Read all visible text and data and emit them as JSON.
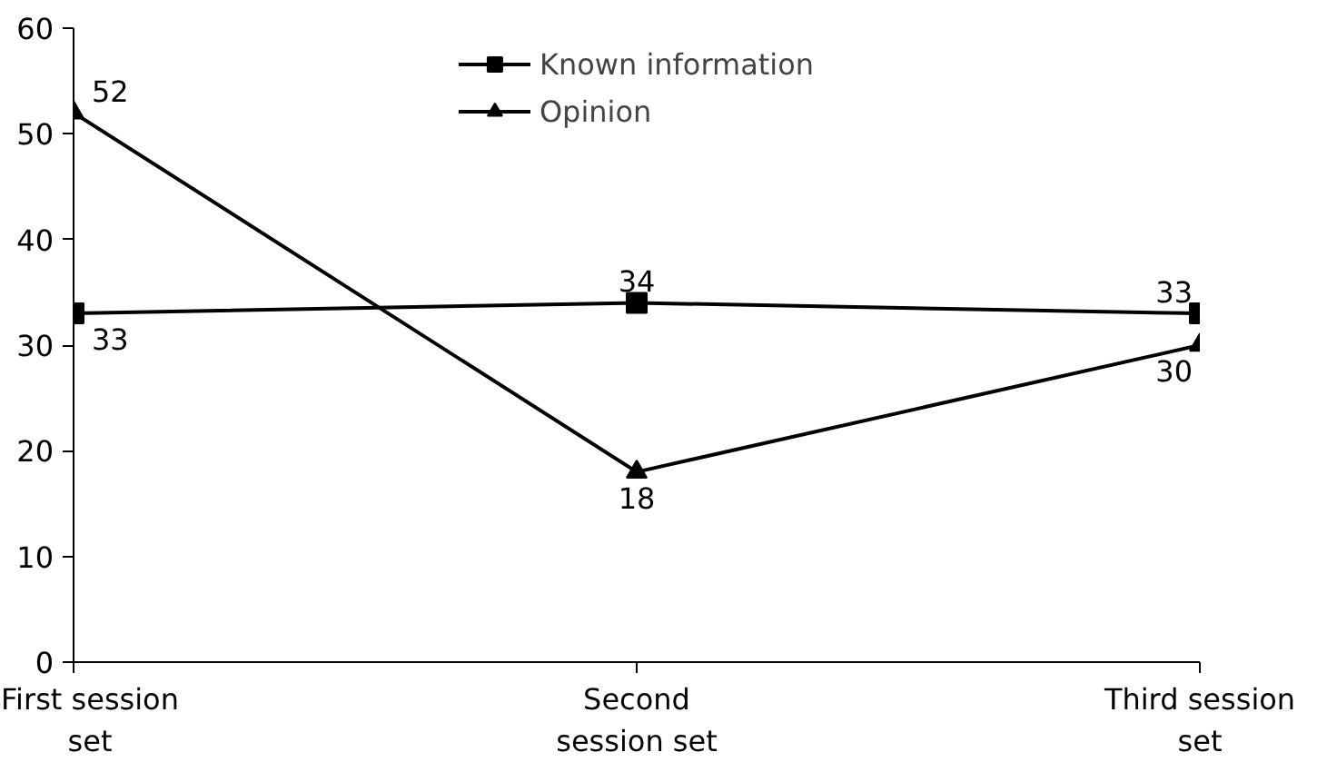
{
  "chart_data": {
    "type": "line",
    "categories": [
      "First session set",
      "Second session set",
      "Third session set"
    ],
    "series": [
      {
        "name": "Known information",
        "color": "#000000",
        "marker": "square",
        "values": [
          33,
          34,
          33
        ]
      },
      {
        "name": "Opinion",
        "color": "#000000",
        "marker": "triangle",
        "values": [
          52,
          18,
          30
        ]
      }
    ],
    "ylim": [
      0,
      60
    ],
    "yticks": [
      0,
      10,
      20,
      30,
      40,
      50,
      60
    ],
    "grid": false,
    "legend": "top",
    "data_labels": true,
    "line_style": "solid"
  }
}
